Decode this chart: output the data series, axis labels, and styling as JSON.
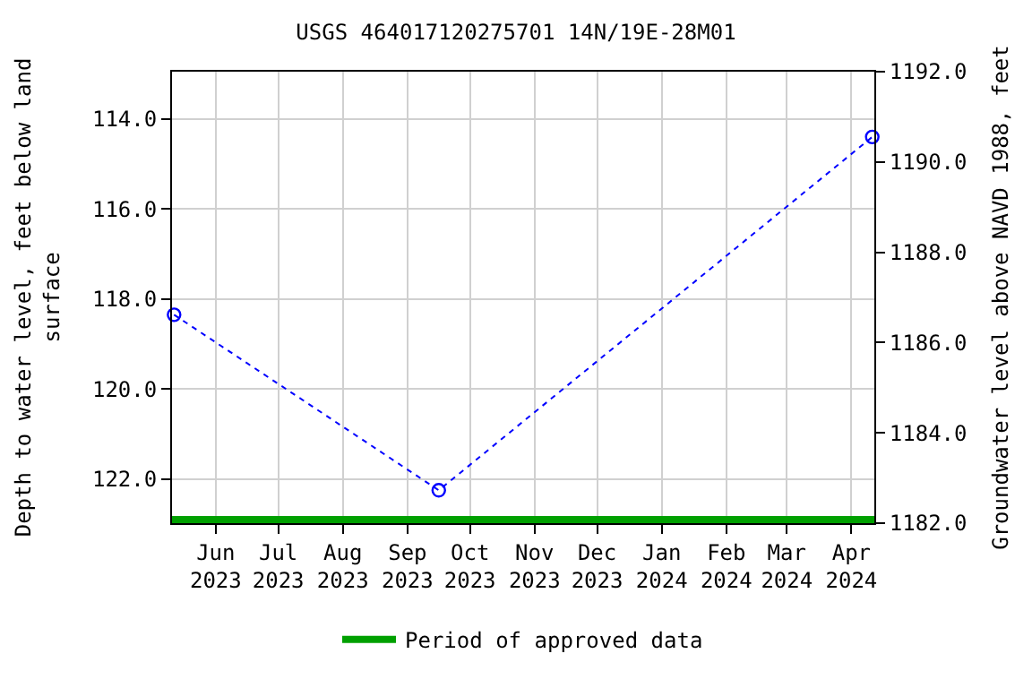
{
  "chart_data": {
    "type": "line",
    "title": "USGS 464017120275701 14N/19E-28M01",
    "xlabel": null,
    "ylabel": "Depth to water level, feet below land\nsurface",
    "y2label": "Groundwater level above NAVD 1988, feet",
    "series": [
      {
        "x": [
          "2023-05-12",
          "2023-09-16",
          "2024-04-11"
        ],
        "values": [
          118.35,
          122.25,
          114.4
        ],
        "color": "#0000ff",
        "marker": "circle",
        "line_style": "dotted"
      },
      {
        "name": "Period of approved data",
        "x": [
          "2023-05-11",
          "2024-04-12"
        ],
        "values": [
          122.9,
          122.9
        ],
        "color": "#00a000",
        "marker": "none",
        "line_style": "solid"
      }
    ],
    "xlim": [
      "2023-05-11",
      "2024-04-12"
    ],
    "xticks": [
      {
        "value": "2023-06-01",
        "label": "Jun\n2023"
      },
      {
        "value": "2023-07-01",
        "label": "Jul\n2023"
      },
      {
        "value": "2023-08-01",
        "label": "Aug\n2023"
      },
      {
        "value": "2023-09-01",
        "label": "Sep\n2023"
      },
      {
        "value": "2023-10-01",
        "label": "Oct\n2023"
      },
      {
        "value": "2023-11-01",
        "label": "Nov\n2023"
      },
      {
        "value": "2023-12-01",
        "label": "Dec\n2023"
      },
      {
        "value": "2024-01-01",
        "label": "Jan\n2024"
      },
      {
        "value": "2024-02-01",
        "label": "Feb\n2024"
      },
      {
        "value": "2024-03-01",
        "label": "Mar\n2024"
      },
      {
        "value": "2024-04-01",
        "label": "Apr\n2024"
      }
    ],
    "ylim": [
      122.98,
      112.95
    ],
    "yticks": [
      {
        "value": 114,
        "label": "114.0"
      },
      {
        "value": 116,
        "label": "116.0"
      },
      {
        "value": 118,
        "label": "118.0"
      },
      {
        "value": 120,
        "label": "120.0"
      },
      {
        "value": 122,
        "label": "122.0"
      }
    ],
    "y2lim": [
      1182,
      1192
    ],
    "y2ticks": [
      {
        "value": 1182,
        "label": "1182.0"
      },
      {
        "value": 1184,
        "label": "1184.0"
      },
      {
        "value": 1186,
        "label": "1186.0"
      },
      {
        "value": 1188,
        "label": "1188.0"
      },
      {
        "value": 1190,
        "label": "1190.0"
      },
      {
        "value": 1192,
        "label": "1192.0"
      }
    ],
    "grid": true,
    "legend": "bottom"
  }
}
